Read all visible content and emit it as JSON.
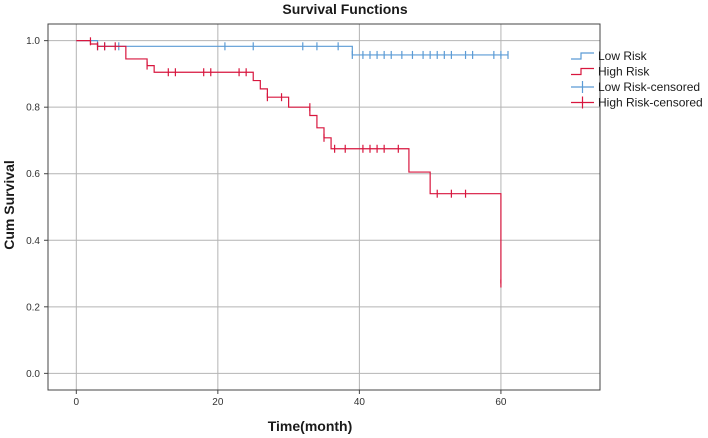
{
  "chart_data": {
    "type": "line",
    "title": "Survival Functions",
    "xlabel": "Time(month)",
    "ylabel": "Cum Survival",
    "xlim": [
      -4,
      74
    ],
    "ylim": [
      -0.05,
      1.05
    ],
    "xticks": [
      0,
      20,
      40,
      60
    ],
    "yticks": [
      0.0,
      0.2,
      0.4,
      0.6,
      0.8,
      1.0
    ],
    "xtick_labels": [
      "0",
      "20",
      "40",
      "60"
    ],
    "ytick_labels": [
      "0.0",
      "0.2",
      "0.4",
      "0.6",
      "0.8",
      "1.0"
    ],
    "grid": true,
    "legend_position": "right",
    "legend": [
      "Low Risk",
      "High Risk",
      "Low Risk-censored",
      "High Risk-censored"
    ],
    "series": [
      {
        "name": "Low Risk",
        "color": "#5b9bd5",
        "steps": [
          [
            0,
            1.0
          ],
          [
            3,
            0.983
          ],
          [
            39,
            0.957
          ],
          [
            61,
            0.957
          ]
        ],
        "censored": [
          [
            3,
            0.983
          ],
          [
            4,
            0.983
          ],
          [
            6,
            0.983
          ],
          [
            21,
            0.983
          ],
          [
            25,
            0.983
          ],
          [
            32,
            0.983
          ],
          [
            34,
            0.983
          ],
          [
            37,
            0.983
          ],
          [
            39,
            0.957
          ],
          [
            40.5,
            0.957
          ],
          [
            41.5,
            0.957
          ],
          [
            42.5,
            0.957
          ],
          [
            43.5,
            0.957
          ],
          [
            44.5,
            0.957
          ],
          [
            46,
            0.957
          ],
          [
            47.5,
            0.957
          ],
          [
            49,
            0.957
          ],
          [
            50,
            0.957
          ],
          [
            51,
            0.957
          ],
          [
            52,
            0.957
          ],
          [
            53,
            0.957
          ],
          [
            55,
            0.957
          ],
          [
            56,
            0.957
          ],
          [
            59,
            0.957
          ],
          [
            60,
            0.957
          ],
          [
            61,
            0.957
          ]
        ]
      },
      {
        "name": "High Risk",
        "color": "#d8163e",
        "steps": [
          [
            0,
            1.0
          ],
          [
            2,
            0.99
          ],
          [
            3,
            0.983
          ],
          [
            7,
            0.945
          ],
          [
            10,
            0.925
          ],
          [
            11,
            0.905
          ],
          [
            25,
            0.88
          ],
          [
            26,
            0.855
          ],
          [
            27,
            0.83
          ],
          [
            30,
            0.8
          ],
          [
            33,
            0.775
          ],
          [
            34,
            0.738
          ],
          [
            35,
            0.708
          ],
          [
            36,
            0.675
          ],
          [
            47,
            0.605
          ],
          [
            50,
            0.54
          ],
          [
            60,
            0.27
          ]
        ],
        "censored": [
          [
            2,
            0.998
          ],
          [
            3,
            0.983
          ],
          [
            4,
            0.983
          ],
          [
            5.5,
            0.983
          ],
          [
            10,
            0.925
          ],
          [
            13,
            0.905
          ],
          [
            14,
            0.905
          ],
          [
            18,
            0.905
          ],
          [
            19,
            0.905
          ],
          [
            23,
            0.905
          ],
          [
            24,
            0.905
          ],
          [
            27,
            0.83
          ],
          [
            29,
            0.83
          ],
          [
            33,
            0.8
          ],
          [
            35,
            0.708
          ],
          [
            36.5,
            0.675
          ],
          [
            38,
            0.675
          ],
          [
            40.5,
            0.675
          ],
          [
            41.5,
            0.675
          ],
          [
            42.5,
            0.675
          ],
          [
            43.5,
            0.675
          ],
          [
            45.5,
            0.675
          ],
          [
            51,
            0.54
          ],
          [
            53,
            0.54
          ],
          [
            55,
            0.54
          ],
          [
            60,
            0.27
          ]
        ]
      }
    ]
  }
}
